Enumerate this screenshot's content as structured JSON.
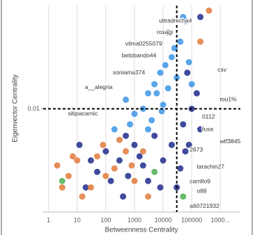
{
  "chart_data": {
    "type": "scatter",
    "x_label": "Betweenness Centrality",
    "y_label": "Eigenvector Centrality",
    "xscale": "log",
    "yscale": "log",
    "xlim": [
      0.65,
      5000000
    ],
    "ylim": [
      0.0001,
      1
    ],
    "xticks": [
      1,
      10,
      100,
      1000,
      10000,
      100000,
      {
        "value": 1000000,
        "label": "1000..."
      }
    ],
    "yticks": [
      0.01
    ],
    "grid": true,
    "reference_lines": {
      "x": 30000,
      "y": 0.01
    },
    "series": [
      {
        "color": "#3d95e6",
        "x": [
          3000,
          8000,
          20000,
          5000,
          15000,
          40000,
          60000,
          2000,
          1000,
          500,
          10000,
          30000,
          80000,
          4000,
          700,
          25000,
          12000,
          6000,
          200,
          100000,
          50000,
          3000,
          15000,
          9000
        ],
        "y": [
          0.02,
          0.05,
          0.1,
          0.03,
          0.3,
          0.2,
          0.5,
          0.01,
          0.008,
          0.015,
          0.012,
          0.04,
          0.08,
          0.006,
          0.005,
          0.15,
          0.07,
          0.02,
          0.004,
          0.03,
          0.6,
          0.004,
          0.025,
          0.009
        ]
      },
      {
        "color": "#1f2a8c",
        "x": [
          100000,
          50000,
          20000,
          5000,
          1000,
          300,
          100,
          30,
          50,
          2000,
          10000,
          40000,
          80000,
          200000,
          150,
          20,
          600,
          3000,
          8000,
          30000,
          60000,
          500,
          150000,
          200000,
          70000,
          1500,
          12,
          400
        ],
        "y": [
          0.01,
          0.005,
          0.002,
          0.003,
          0.002,
          0.001,
          0.0015,
          0.001,
          0.0006,
          0.0008,
          0.001,
          0.0007,
          0.002,
          0.004,
          0.0004,
          0.0003,
          0.0005,
          0.0004,
          0.0003,
          0.0003,
          0.0015,
          0.003,
          0.02,
          0.6,
          0.05,
          0.0012,
          0.002,
          0.0002
        ]
      },
      {
        "color": "#e07a3a",
        "x": [
          2,
          5,
          10,
          30,
          80,
          200,
          500,
          1000,
          15,
          3,
          50,
          300,
          800,
          2000,
          100,
          7,
          400000,
          200000,
          3000
        ],
        "y": [
          0.0008,
          0.0005,
          0.001,
          0.0003,
          0.002,
          0.0007,
          0.0015,
          0.0004,
          0.0002,
          0.0003,
          0.0012,
          0.0025,
          0.0008,
          0.0015,
          0.0005,
          0.0012,
          0.8,
          0.2,
          0.0002
        ]
      },
      {
        "color": "#4caf50",
        "x": [
          3,
          5000,
          50000
        ],
        "y": [
          0.0004,
          0.0006,
          0.0002
        ]
      }
    ],
    "annotations": [
      {
        "text": "ultradrecha4",
        "x": 7200,
        "y": 0.5
      },
      {
        "text": "rosagi",
        "x": 6000,
        "y": 0.3
      },
      {
        "text": "vilma0255079",
        "x": 480,
        "y": 0.18
      },
      {
        "text": "betobando44",
        "x": 360,
        "y": 0.107
      },
      {
        "text": "soniama374",
        "x": 175,
        "y": 0.05
      },
      {
        "text": "csv",
        "x": 800000,
        "y": 0.056
      },
      {
        "text": "a__alegria",
        "x": 18.5,
        "y": 0.026
      },
      {
        "text": "tou1%",
        "x": 960000,
        "y": 0.015
      },
      {
        "text": "sitipacarnic",
        "x": 4.8,
        "y": 0.008
      },
      {
        "text": "0112",
        "x": 230000,
        "y": 0.007
      },
      {
        "text": "fusa",
        "x": 230000,
        "y": 0.004
      },
      {
        "text": "wtf3845",
        "x": 960000,
        "y": 0.0023
      },
      {
        "text": "2673",
        "x": 85000,
        "y": 0.0016
      },
      {
        "text": "tarachin27",
        "x": 150000,
        "y": 0.00075
      },
      {
        "text": "carrillo9",
        "x": 85000,
        "y": 0.00039
      },
      {
        "text": "o88",
        "x": 150000,
        "y": 0.00025
      },
      {
        "text": "a60721932",
        "x": 85000,
        "y": 0.00013
      }
    ]
  }
}
